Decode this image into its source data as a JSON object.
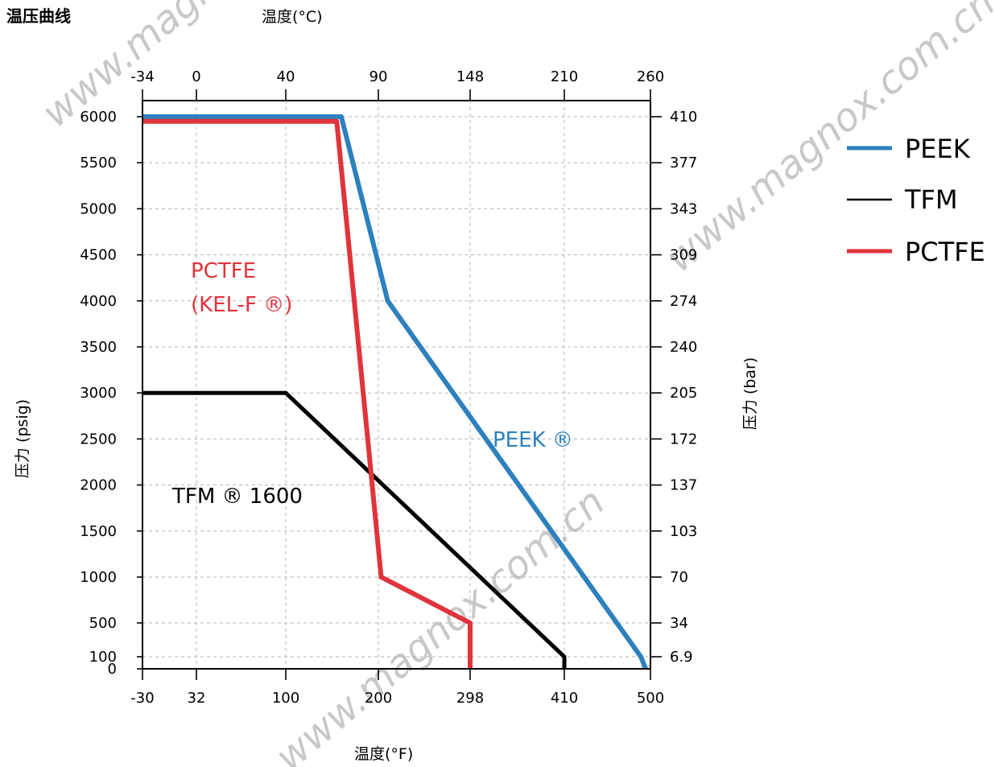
{
  "page_title": "温压曲线",
  "watermark": "www.magnox.com.cn",
  "chart_data": {
    "type": "line",
    "xlabel_top": "温度(°C)",
    "xlabel_bottom": "温度(°F)",
    "ylabel_left": "压力 (psig)",
    "ylabel_right": "压力 (bar)",
    "xlim": [
      -30,
      500
    ],
    "ylim": [
      0,
      6000
    ],
    "grid": true,
    "legend_position": "right",
    "x_ticks_bottom": [
      {
        "value": -30,
        "label": "-30"
      },
      {
        "value": 32,
        "label": "32"
      },
      {
        "value": 100,
        "label": "100"
      },
      {
        "value": 200,
        "label": "200"
      },
      {
        "value": 298,
        "label": "298"
      },
      {
        "value": 410,
        "label": "410"
      },
      {
        "value": 500,
        "label": "500"
      }
    ],
    "x_ticks_top": [
      {
        "value": -30,
        "label": "-34"
      },
      {
        "value": 32,
        "label": "0"
      },
      {
        "value": 100,
        "label": "40"
      },
      {
        "value": 200,
        "label": "90"
      },
      {
        "value": 298,
        "label": "148"
      },
      {
        "value": 410,
        "label": "210"
      },
      {
        "value": 500,
        "label": "260"
      }
    ],
    "y_ticks_left": [
      {
        "value": 0,
        "label": "0"
      },
      {
        "value": 100,
        "label": "100"
      },
      {
        "value": 500,
        "label": "500"
      },
      {
        "value": 1000,
        "label": "1000"
      },
      {
        "value": 1500,
        "label": "1500"
      },
      {
        "value": 2000,
        "label": "2000"
      },
      {
        "value": 2500,
        "label": "2500"
      },
      {
        "value": 3000,
        "label": "3000"
      },
      {
        "value": 3500,
        "label": "3500"
      },
      {
        "value": 4000,
        "label": "4000"
      },
      {
        "value": 4500,
        "label": "4500"
      },
      {
        "value": 5000,
        "label": "5000"
      },
      {
        "value": 5500,
        "label": "5500"
      },
      {
        "value": 6000,
        "label": "6000"
      }
    ],
    "y_ticks_right": [
      {
        "value": 100,
        "label": "6.9"
      },
      {
        "value": 500,
        "label": "34"
      },
      {
        "value": 1000,
        "label": "70"
      },
      {
        "value": 1500,
        "label": "103"
      },
      {
        "value": 2000,
        "label": "137"
      },
      {
        "value": 2500,
        "label": "172"
      },
      {
        "value": 3000,
        "label": "205"
      },
      {
        "value": 3500,
        "label": "240"
      },
      {
        "value": 4000,
        "label": "274"
      },
      {
        "value": 4500,
        "label": "309"
      },
      {
        "value": 5000,
        "label": "343"
      },
      {
        "value": 5500,
        "label": "377"
      },
      {
        "value": 6000,
        "label": "410"
      }
    ],
    "series": [
      {
        "name": "PEEK",
        "color": "#2d80be",
        "annotation": "PEEK ®",
        "points": [
          [
            -30,
            6000
          ],
          [
            160,
            6000
          ],
          [
            210,
            4000
          ],
          [
            490,
            100
          ],
          [
            495,
            0
          ]
        ]
      },
      {
        "name": "TFM",
        "color": "#000000",
        "annotation": "TFM ® 1600",
        "points": [
          [
            -30,
            3000
          ],
          [
            100,
            3000
          ],
          [
            410,
            100
          ],
          [
            410,
            0
          ]
        ]
      },
      {
        "name": "PCTFE",
        "color": "#e0333c",
        "annotation": "PCTFE\n(KEL-F ®)",
        "annotation_lines": [
          "PCTFE",
          "(KEL-F ®)"
        ],
        "points": [
          [
            -30,
            5950
          ],
          [
            155,
            5950
          ],
          [
            203,
            1000
          ],
          [
            298,
            500
          ],
          [
            298,
            0
          ]
        ]
      }
    ]
  }
}
